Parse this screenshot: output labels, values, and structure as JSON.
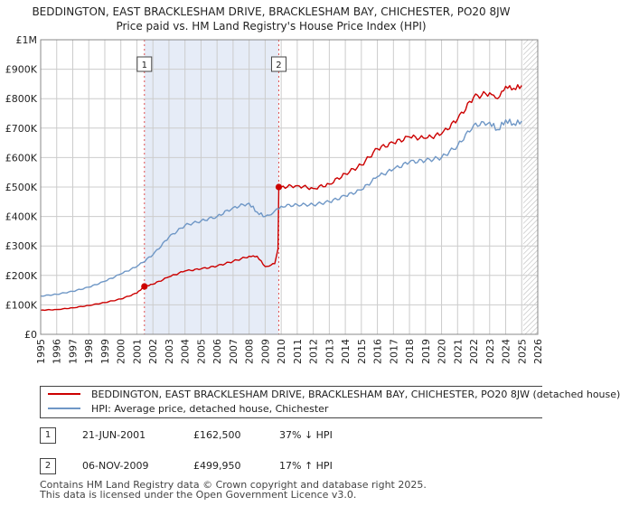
{
  "title": {
    "line1": "BEDDINGTON, EAST BRACKLESHAM DRIVE, BRACKLESHAM BAY, CHICHESTER, PO20 8JW",
    "line2": "Price paid vs. HM Land Registry's House Price Index (HPI)"
  },
  "colors": {
    "property": "#cc0000",
    "hpi": "#6f97c6",
    "shade": "#e6ecf7",
    "grid": "#cccccc",
    "marker_line": "#e05050"
  },
  "chart_data": {
    "type": "line",
    "title": "Price paid vs. HM Land Registry's House Price Index (HPI)",
    "xlabel": "",
    "ylabel": "",
    "xlim": [
      1995,
      2026
    ],
    "ylim": [
      0,
      1000000
    ],
    "y_ticks": [
      {
        "value": 0,
        "label": "£0"
      },
      {
        "value": 100000,
        "label": "£100K"
      },
      {
        "value": 200000,
        "label": "£200K"
      },
      {
        "value": 300000,
        "label": "£300K"
      },
      {
        "value": 400000,
        "label": "£400K"
      },
      {
        "value": 500000,
        "label": "£500K"
      },
      {
        "value": 600000,
        "label": "£600K"
      },
      {
        "value": 700000,
        "label": "£700K"
      },
      {
        "value": 800000,
        "label": "£800K"
      },
      {
        "value": 900000,
        "label": "£900K"
      },
      {
        "value": 1000000,
        "label": "£1M"
      }
    ],
    "x_ticks": [
      "1995",
      "1996",
      "1997",
      "1998",
      "1999",
      "2000",
      "2001",
      "2002",
      "2003",
      "2004",
      "2005",
      "2006",
      "2007",
      "2008",
      "2009",
      "2010",
      "2011",
      "2012",
      "2013",
      "2014",
      "2015",
      "2016",
      "2017",
      "2018",
      "2019",
      "2020",
      "2021",
      "2022",
      "2023",
      "2024",
      "2025",
      "2026"
    ],
    "shaded_period": [
      2001.47,
      2009.85
    ],
    "hatched_after": 2025.1,
    "markers": [
      {
        "label": "1",
        "x": 2001.47,
        "y": 162500
      },
      {
        "label": "2",
        "x": 2009.85,
        "y": 499950
      }
    ],
    "series": [
      {
        "name": "BEDDINGTON, EAST BRACKLESHAM DRIVE, BRACKLESHAM BAY, CHICHESTER, PO20 8JW (detached house)",
        "color": "#cc0000",
        "x": [
          1995,
          1996,
          1997,
          1998,
          1999,
          2000,
          2001,
          2001.47,
          2002,
          2003,
          2004,
          2005,
          2006,
          2007,
          2008,
          2008.5,
          2009,
          2009.6,
          2009.8,
          2009.85,
          2010,
          2011,
          2012,
          2013,
          2014,
          2015,
          2016,
          2017,
          2018,
          2019,
          2020,
          2021,
          2022,
          2023,
          2023.5,
          2024,
          2024.5,
          2025
        ],
        "y": [
          82000,
          84000,
          90000,
          98000,
          108000,
          120000,
          140000,
          162500,
          170000,
          195000,
          215000,
          222000,
          232000,
          248000,
          265000,
          265000,
          230000,
          240000,
          290000,
          499950,
          500000,
          505000,
          495000,
          510000,
          545000,
          575000,
          630000,
          650000,
          670000,
          665000,
          680000,
          730000,
          805000,
          820000,
          800000,
          842000,
          835000,
          845000
        ]
      },
      {
        "name": "HPI: Average price, detached house, Chichester",
        "color": "#6f97c6",
        "x": [
          1995,
          1996,
          1997,
          1998,
          1999,
          2000,
          2001,
          2002,
          2003,
          2004,
          2005,
          2006,
          2007,
          2008,
          2008.5,
          2009,
          2009.85,
          2010,
          2011,
          2012,
          2013,
          2014,
          2015,
          2016,
          2017,
          2018,
          2019,
          2020,
          2021,
          2022,
          2023,
          2023.5,
          2024,
          2024.5,
          2025
        ],
        "y": [
          130000,
          136000,
          146000,
          160000,
          180000,
          205000,
          230000,
          270000,
          330000,
          370000,
          385000,
          400000,
          430000,
          445000,
          415000,
          400000,
          425000,
          435000,
          440000,
          440000,
          450000,
          470000,
          490000,
          535000,
          560000,
          585000,
          590000,
          600000,
          640000,
          710000,
          720000,
          695000,
          728000,
          715000,
          724000
        ]
      }
    ]
  },
  "legend": {
    "property_label": "BEDDINGTON, EAST BRACKLESHAM DRIVE, BRACKLESHAM BAY, CHICHESTER, PO20 8JW (detached house)",
    "hpi_label": "HPI: Average price, detached house, Chichester"
  },
  "sales": [
    {
      "label": "1",
      "date": "21-JUN-2001",
      "price": "£162,500",
      "hpi": "37% ↓ HPI"
    },
    {
      "label": "2",
      "date": "06-NOV-2009",
      "price": "£499,950",
      "hpi": "17% ↑ HPI"
    }
  ],
  "footer": {
    "line1": "Contains HM Land Registry data © Crown copyright and database right 2025.",
    "line2": "This data is licensed under the Open Government Licence v3.0."
  }
}
